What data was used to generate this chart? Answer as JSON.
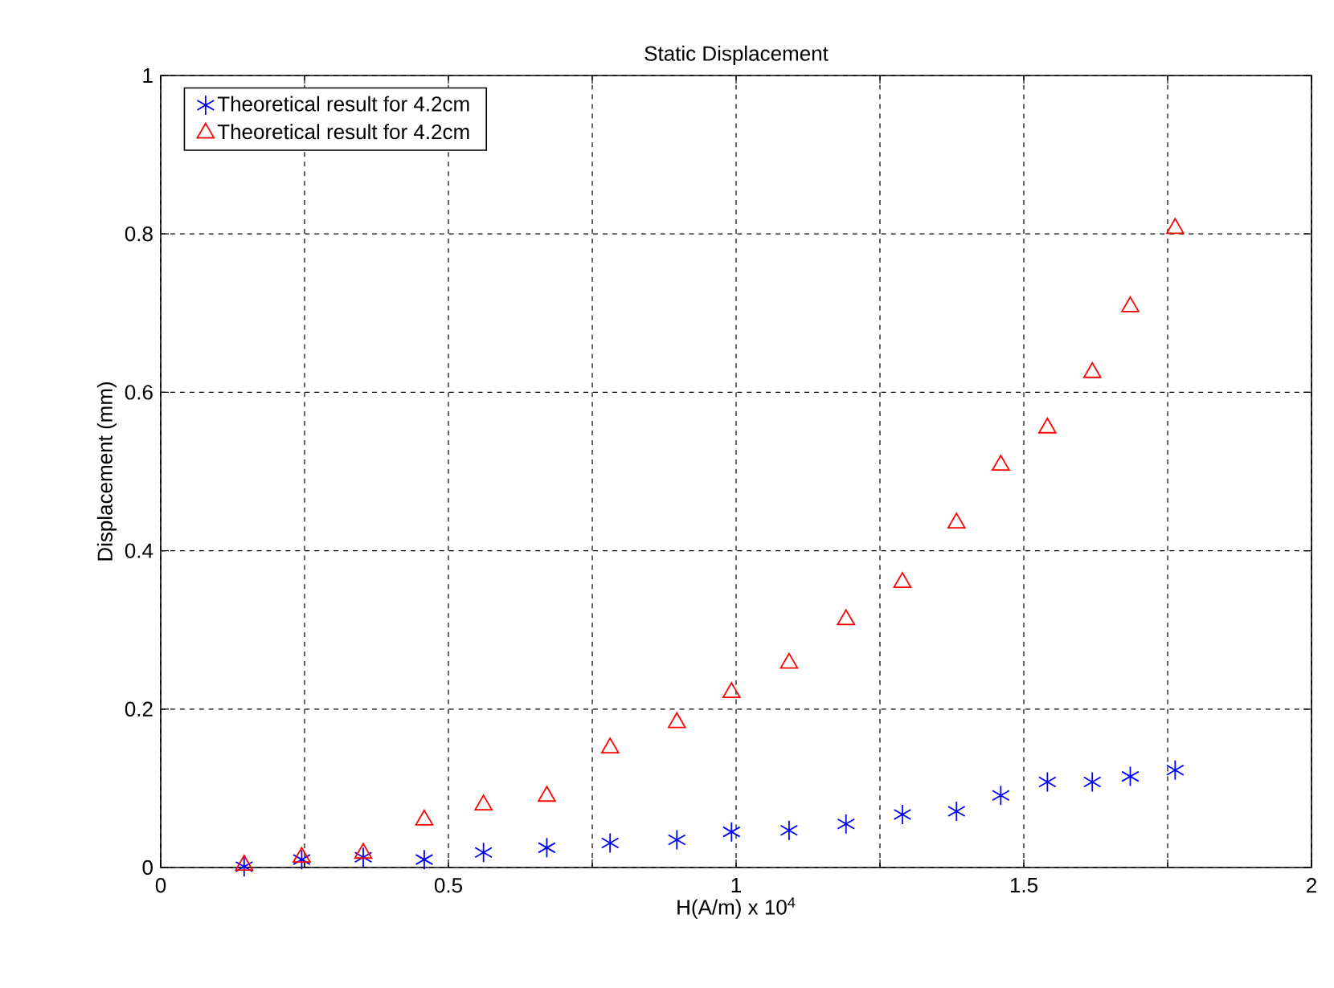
{
  "chart_data": {
    "type": "scatter",
    "title": "Static Displacement",
    "xlabel": "H(A/m) x 10$^{4}$",
    "ylabel": "Displacement (mm)",
    "xlim": [
      0,
      2
    ],
    "ylim": [
      0,
      1
    ],
    "xticks": [
      0,
      {
        "value": 0.25,
        "label": null
      },
      0.5,
      {
        "value": 0.75,
        "label": null
      },
      1,
      {
        "value": 1.25,
        "label": null
      },
      1.5,
      {
        "value": 1.75,
        "label": null
      },
      2
    ],
    "yticks": [
      0,
      0.2,
      0.4,
      0.6,
      0.8,
      1
    ],
    "grid": true,
    "legend": "top left",
    "series": [
      {
        "name": "Theoretical result for 4.2cm",
        "color": "#0000ff",
        "marker": "cross",
        "x": [
          0.145,
          0.245,
          0.352,
          0.458,
          0.561,
          0.671,
          0.781,
          0.897,
          0.992,
          1.092,
          1.191,
          1.289,
          1.383,
          1.46,
          1.541,
          1.619,
          1.685,
          1.763
        ],
        "values": [
          0.001,
          0.01,
          0.013,
          0.01,
          0.019,
          0.025,
          0.031,
          0.035,
          0.045,
          0.047,
          0.055,
          0.067,
          0.071,
          0.091,
          0.108,
          0.108,
          0.115,
          0.123
        ]
      },
      {
        "name": "Theoretical result for 4.2cm",
        "color": "#ff0000",
        "marker": "triangle",
        "x": [
          0.145,
          0.245,
          0.352,
          0.458,
          0.561,
          0.671,
          0.781,
          0.897,
          0.992,
          1.092,
          1.191,
          1.289,
          1.383,
          1.46,
          1.541,
          1.619,
          1.685,
          1.763
        ],
        "values": [
          0.003,
          0.013,
          0.018,
          0.06,
          0.079,
          0.09,
          0.151,
          0.183,
          0.221,
          0.258,
          0.313,
          0.36,
          0.435,
          0.508,
          0.555,
          0.625,
          0.708,
          0.807
        ]
      }
    ]
  }
}
